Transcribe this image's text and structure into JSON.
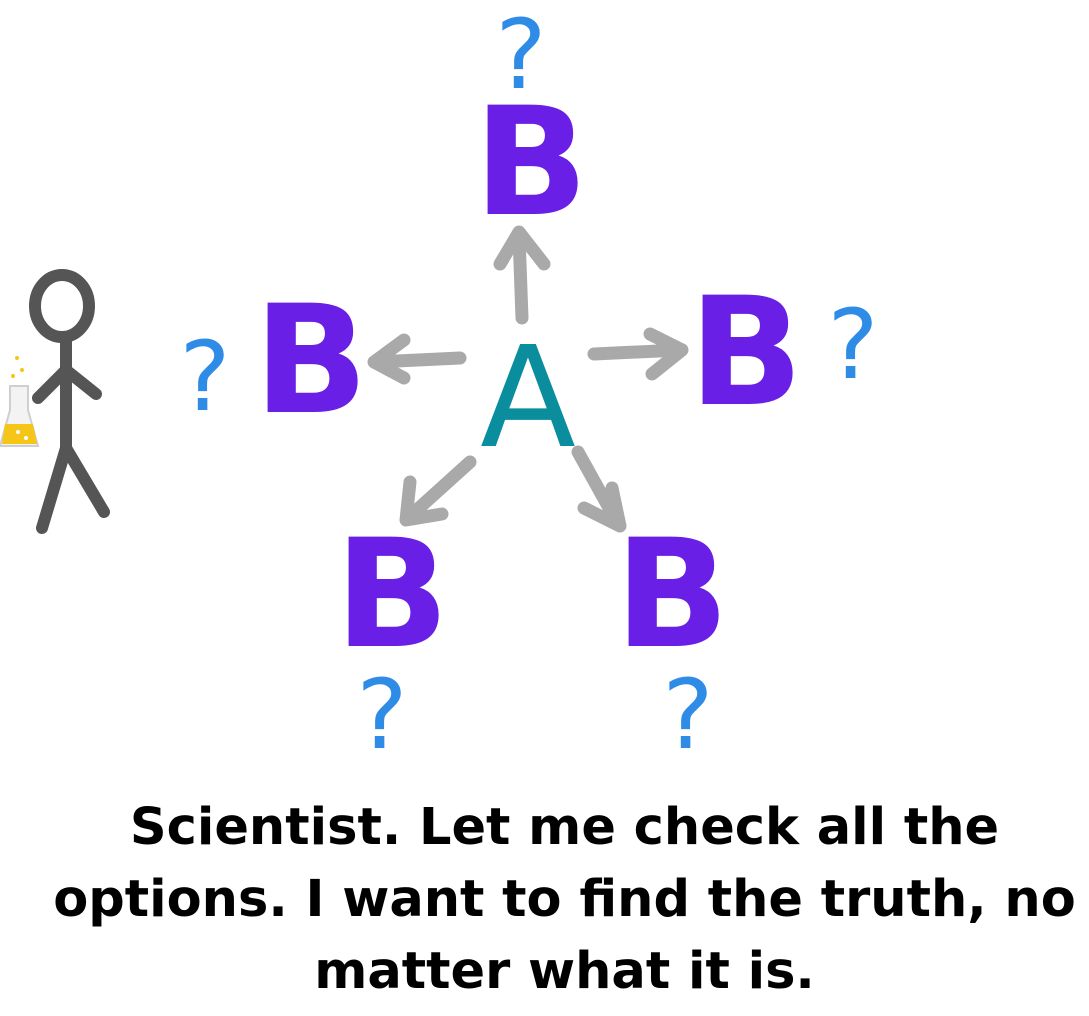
{
  "diagram": {
    "center_label": "A",
    "outcome_label": "B",
    "question_mark": "?",
    "character": "scientist-stick-figure",
    "prop": "flask-icon",
    "colors": {
      "center": "#0a8d9c",
      "outcome": "#6a1fe6",
      "question": "#2f8ce6",
      "arrow": "#a9a9a9",
      "figure": "#555555",
      "flask_liquid": "#f5c518",
      "caption": "#000000"
    }
  },
  "caption": {
    "text": "Scientist. Let me check all the options. I want to find the truth, no matter what it is."
  }
}
